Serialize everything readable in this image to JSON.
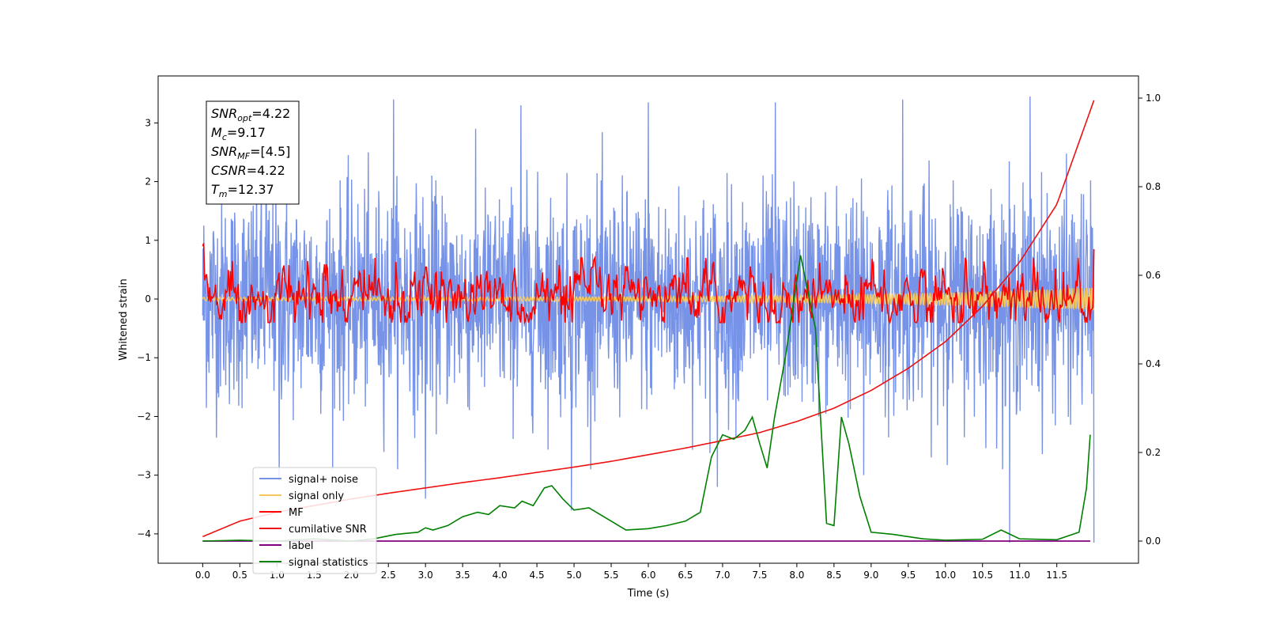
{
  "chart_data": {
    "type": "line",
    "xlabel": "Time (s)",
    "ylabel": "Whitened strain",
    "xlim": [
      -0.6,
      12.6
    ],
    "ylim": [
      -4.5,
      3.8
    ],
    "y2lim": [
      -0.05,
      1.05
    ],
    "xticks": [
      0.0,
      0.5,
      1.0,
      1.5,
      2.0,
      2.5,
      3.0,
      3.5,
      4.0,
      4.5,
      5.0,
      5.5,
      6.0,
      6.5,
      7.0,
      7.5,
      8.0,
      8.5,
      9.0,
      9.5,
      10.0,
      10.5,
      11.0,
      11.5
    ],
    "xtick_labels": [
      "0.0",
      "0.5",
      "1.0",
      "1.5",
      "2.0",
      "2.5",
      "3.0",
      "3.5",
      "4.0",
      "4.5",
      "5.0",
      "5.5",
      "6.0",
      "6.5",
      "7.0",
      "7.5",
      "8.0",
      "8.5",
      "9.0",
      "9.5",
      "10.0",
      "10.5",
      "11.0",
      "11.5"
    ],
    "yticks": [
      3,
      2,
      1,
      0,
      -1,
      -2,
      -3,
      -4
    ],
    "ytick_labels": [
      "3",
      "2",
      "1",
      "0",
      "−1",
      "−2",
      "−3",
      "−4"
    ],
    "y2ticks": [
      1.0,
      0.8,
      0.6,
      0.4,
      0.2,
      0.0
    ],
    "y2tick_labels": [
      "1.0",
      "0.8",
      "0.6",
      "0.4",
      "0.2",
      "0.0"
    ],
    "legend_position": "lower-left",
    "annotation_box": [
      {
        "base": "SNR",
        "sub": "opt",
        "value": "=4.22"
      },
      {
        "base": "M",
        "sub": "c",
        "value": "=9.17"
      },
      {
        "base": "SNR",
        "sub": "MF",
        "value": "=[4.5]"
      },
      {
        "base": "CSNR",
        "sub": "",
        "value": "=4.22"
      },
      {
        "base": "T",
        "sub": "m",
        "value": "=12.37"
      }
    ],
    "series": [
      {
        "name": "signal+ noise",
        "color": "#7793e8",
        "axis": "left",
        "style": "noise band, roughly zero-mean with amplitude about ±1.5 and spikes to ±3.4",
        "x_range": [
          0.0,
          12.0
        ],
        "envelope_peaks": [
          3.35,
          3.4,
          3.3,
          3.35,
          3.35,
          3.4,
          3.45
        ],
        "envelope_troughs": [
          -3.1,
          -3.4,
          -3.6,
          -3.2,
          -3.0,
          -4.15
        ]
      },
      {
        "name": "signal only",
        "color": "#f5c85c",
        "axis": "left",
        "style": "chirp near zero, amplitude grows to about 0.2 at the end",
        "x_range": [
          0.0,
          12.0
        ]
      },
      {
        "name": "MF",
        "color": "#ff0000",
        "axis": "left",
        "style": "noisy trace around 0 with amplitude about ±0.4, starting near 0.9",
        "x_range": [
          0.0,
          12.0
        ]
      },
      {
        "name": "cumilative SNR",
        "color": "#ee1111",
        "axis": "right",
        "x": [
          0.0,
          0.5,
          1.0,
          1.5,
          2.0,
          2.5,
          3.0,
          3.5,
          4.0,
          4.5,
          5.0,
          5.5,
          6.0,
          6.5,
          7.0,
          7.5,
          8.0,
          8.5,
          9.0,
          9.5,
          10.0,
          10.5,
          11.0,
          11.5,
          12.0
        ],
        "values": [
          0.01,
          0.045,
          0.065,
          0.08,
          0.095,
          0.108,
          0.12,
          0.132,
          0.143,
          0.155,
          0.167,
          0.18,
          0.195,
          0.21,
          0.227,
          0.245,
          0.27,
          0.3,
          0.34,
          0.39,
          0.45,
          0.53,
          0.63,
          0.76,
          0.995
        ]
      },
      {
        "name": "label",
        "color": "#800080",
        "axis": "right",
        "x": [
          0.0,
          11.95
        ],
        "values": [
          0.0,
          0.0
        ]
      },
      {
        "name": "signal statistics",
        "color": "#008000",
        "axis": "right",
        "x": [
          0.0,
          0.5,
          1.0,
          1.5,
          2.0,
          2.3,
          2.6,
          2.9,
          3.0,
          3.1,
          3.3,
          3.5,
          3.7,
          3.85,
          4.0,
          4.2,
          4.3,
          4.45,
          4.6,
          4.7,
          4.85,
          5.0,
          5.2,
          5.5,
          5.7,
          6.0,
          6.25,
          6.5,
          6.7,
          6.85,
          7.0,
          7.15,
          7.3,
          7.4,
          7.5,
          7.6,
          7.7,
          7.85,
          8.05,
          8.25,
          8.4,
          8.5,
          8.6,
          8.7,
          8.85,
          9.0,
          9.3,
          9.7,
          10.0,
          10.5,
          10.75,
          11.0,
          11.5,
          11.8,
          11.9,
          11.95
        ],
        "values": [
          0.0,
          0.002,
          0.0,
          0.005,
          0.0,
          0.005,
          0.015,
          0.02,
          0.03,
          0.025,
          0.035,
          0.055,
          0.065,
          0.06,
          0.08,
          0.075,
          0.09,
          0.08,
          0.12,
          0.125,
          0.095,
          0.07,
          0.075,
          0.045,
          0.025,
          0.028,
          0.035,
          0.045,
          0.065,
          0.19,
          0.24,
          0.23,
          0.25,
          0.28,
          0.22,
          0.165,
          0.28,
          0.42,
          0.645,
          0.48,
          0.04,
          0.035,
          0.28,
          0.22,
          0.1,
          0.02,
          0.015,
          0.005,
          0.002,
          0.004,
          0.025,
          0.005,
          0.003,
          0.02,
          0.12,
          0.24
        ]
      }
    ]
  }
}
